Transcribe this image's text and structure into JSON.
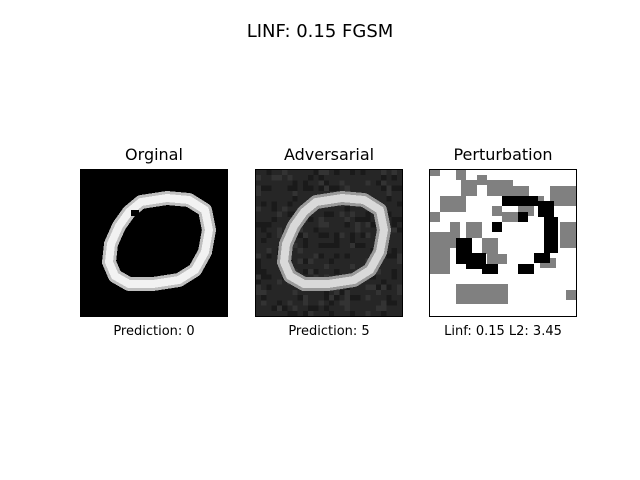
{
  "figure": {
    "suptitle": "LINF: 0.15 FGSM"
  },
  "panels": [
    {
      "title": "Orginal",
      "caption": "Prediction: 0",
      "image": "original-digit-zero"
    },
    {
      "title": "Adversarial",
      "caption": "Prediction: 5",
      "image": "adversarial-digit-zero"
    },
    {
      "title": "Perturbation",
      "caption": "Linf: 0.15  L2: 3.45",
      "image": "perturbation-map"
    }
  ],
  "colors": {
    "background": "#ffffff",
    "original_bg": "#000000",
    "adversarial_bg": "#262626",
    "adversarial_noise": "#1a1a1a",
    "stroke_light": "#e6e6e6",
    "perturb_positive": "#000000",
    "perturb_zero": "#808080",
    "perturb_negative": "#ffffff"
  }
}
